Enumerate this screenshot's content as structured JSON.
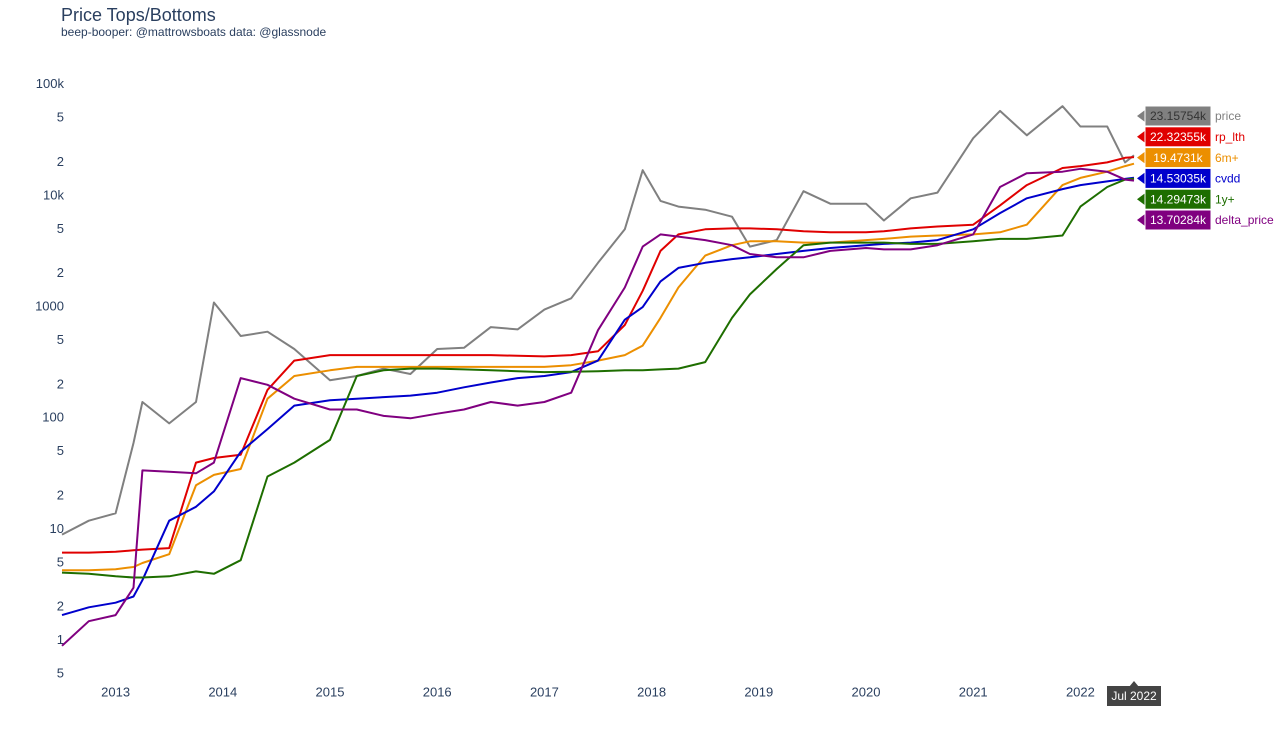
{
  "chart_data": {
    "type": "line",
    "title": "Price Tops/Bottoms",
    "subtitle": "beep-booper: @mattrowsboats data: @glassnode",
    "x_hover_label": "Jul 2022",
    "log_y": true,
    "grid": false,
    "x": [
      "2012-07",
      "2012-10",
      "2013-01",
      "2013-03",
      "2013-04",
      "2013-07",
      "2013-10",
      "2013-12",
      "2014-03",
      "2014-06",
      "2014-09",
      "2015-01",
      "2015-04",
      "2015-07",
      "2015-10",
      "2016-01",
      "2016-04",
      "2016-07",
      "2016-10",
      "2017-01",
      "2017-04",
      "2017-07",
      "2017-10",
      "2017-12",
      "2018-02",
      "2018-04",
      "2018-07",
      "2018-10",
      "2018-12",
      "2019-03",
      "2019-06",
      "2019-09",
      "2020-01",
      "2020-03",
      "2020-06",
      "2020-09",
      "2021-01",
      "2021-04",
      "2021-07",
      "2021-11",
      "2022-01",
      "2022-04",
      "2022-06",
      "2022-07"
    ],
    "xlim": [
      "2012-07",
      "2022-07"
    ],
    "xticks": [
      {
        "value": "2013-01",
        "label": "2013"
      },
      {
        "value": "2014-01",
        "label": "2014"
      },
      {
        "value": "2015-01",
        "label": "2015"
      },
      {
        "value": "2016-01",
        "label": "2016"
      },
      {
        "value": "2017-01",
        "label": "2017"
      },
      {
        "value": "2018-01",
        "label": "2018"
      },
      {
        "value": "2019-01",
        "label": "2019"
      },
      {
        "value": "2020-01",
        "label": "2020"
      },
      {
        "value": "2021-01",
        "label": "2021"
      },
      {
        "value": "2022-01",
        "label": "2022"
      }
    ],
    "ylim": [
      0.4,
      170000
    ],
    "yticks": [
      {
        "value": 100000,
        "label": "100k"
      },
      {
        "value": 50000,
        "label": "5"
      },
      {
        "value": 20000,
        "label": "2"
      },
      {
        "value": 10000,
        "label": "10k"
      },
      {
        "value": 5000,
        "label": "5"
      },
      {
        "value": 2000,
        "label": "2"
      },
      1000,
      {
        "value": 500,
        "label": "5"
      },
      {
        "value": 200,
        "label": "2"
      },
      100,
      {
        "value": 50,
        "label": "5"
      },
      {
        "value": 20,
        "label": "2"
      },
      10,
      {
        "value": 5,
        "label": "5"
      },
      {
        "value": 2,
        "label": "2"
      },
      1,
      {
        "value": 0.5,
        "label": "5"
      }
    ],
    "series": [
      {
        "name": "price",
        "color": "#808080",
        "label_text_color": "#333333",
        "values": [
          9,
          12,
          14,
          60,
          140,
          90,
          140,
          1100,
          550,
          600,
          420,
          220,
          240,
          280,
          250,
          420,
          430,
          660,
          630,
          950,
          1200,
          2500,
          5000,
          17000,
          9000,
          8000,
          7500,
          6500,
          3500,
          4000,
          11000,
          8500,
          8500,
          6000,
          9500,
          10700,
          33000,
          58000,
          35000,
          64000,
          42000,
          42000,
          20000,
          23157.54
        ],
        "value_labels": [
          null,
          null,
          null,
          null,
          null,
          null,
          null,
          null,
          null,
          null,
          null,
          null,
          null,
          null,
          null,
          null,
          null,
          null,
          null,
          null,
          null,
          null,
          null,
          null,
          null,
          null,
          null,
          null,
          null,
          null,
          null,
          null,
          null,
          null,
          null,
          null,
          null,
          null,
          null,
          null,
          null,
          null,
          null,
          "23.15754k"
        ]
      },
      {
        "name": "rp_lth",
        "color": "#e00000",
        "label_text_color": "#ffffff",
        "values": [
          6.2,
          6.2,
          6.3,
          6.5,
          6.6,
          6.8,
          40,
          44,
          47,
          180,
          330,
          370,
          370,
          370,
          370,
          370,
          370,
          370,
          365,
          360,
          370,
          400,
          690,
          1400,
          3200,
          4500,
          5000,
          5100,
          5100,
          5000,
          4800,
          4700,
          4700,
          4800,
          5100,
          5300,
          5500,
          8200,
          12500,
          17800,
          18500,
          20000,
          22000,
          22323.55
        ],
        "value_labels": [
          null,
          null,
          null,
          null,
          null,
          null,
          null,
          null,
          null,
          null,
          null,
          null,
          null,
          null,
          null,
          null,
          null,
          null,
          null,
          null,
          null,
          null,
          null,
          null,
          null,
          null,
          null,
          null,
          null,
          null,
          null,
          null,
          null,
          null,
          null,
          null,
          null,
          null,
          null,
          null,
          null,
          null,
          null,
          "22.32355k"
        ]
      },
      {
        "name": "6m+",
        "color": "#ec8f00",
        "label_text_color": "#ffffff",
        "values": [
          4.3,
          4.3,
          4.4,
          4.6,
          5,
          6,
          25,
          31,
          35,
          150,
          240,
          270,
          290,
          290,
          290,
          290,
          290,
          290,
          290,
          290,
          300,
          330,
          370,
          450,
          800,
          1500,
          2900,
          3600,
          3900,
          3900,
          3800,
          3800,
          4000,
          4100,
          4300,
          4400,
          4500,
          4700,
          5500,
          12500,
          14500,
          16500,
          18500,
          19473.1
        ],
        "value_labels": [
          null,
          null,
          null,
          null,
          null,
          null,
          null,
          null,
          null,
          null,
          null,
          null,
          null,
          null,
          null,
          null,
          null,
          null,
          null,
          null,
          null,
          null,
          null,
          null,
          null,
          null,
          null,
          null,
          null,
          null,
          null,
          null,
          null,
          null,
          null,
          null,
          null,
          null,
          null,
          null,
          null,
          null,
          null,
          "19.4731k"
        ]
      },
      {
        "name": "cvdd",
        "color": "#0000cc",
        "label_text_color": "#ffffff",
        "values": [
          1.7,
          2,
          2.2,
          2.5,
          3.5,
          12,
          16,
          22,
          50,
          80,
          130,
          145,
          150,
          155,
          160,
          170,
          190,
          210,
          230,
          240,
          260,
          330,
          770,
          1000,
          1700,
          2250,
          2500,
          2700,
          2800,
          3000,
          3200,
          3400,
          3600,
          3700,
          3800,
          4000,
          5000,
          7000,
          9500,
          11500,
          12500,
          13500,
          14200,
          14530.35
        ],
        "value_labels": [
          null,
          null,
          null,
          null,
          null,
          null,
          null,
          null,
          null,
          null,
          null,
          null,
          null,
          null,
          null,
          null,
          null,
          null,
          null,
          null,
          null,
          null,
          null,
          null,
          null,
          null,
          null,
          null,
          null,
          null,
          null,
          null,
          null,
          null,
          null,
          null,
          null,
          null,
          null,
          null,
          null,
          null,
          null,
          "14.53035k"
        ]
      },
      {
        "name": "1y+",
        "color": "#1e6e00",
        "label_text_color": "#ffffff",
        "values": [
          4.1,
          4,
          3.8,
          3.7,
          3.7,
          3.8,
          4.2,
          4,
          5.3,
          30,
          40,
          64,
          240,
          270,
          280,
          280,
          275,
          270,
          265,
          260,
          262,
          265,
          270,
          270,
          275,
          280,
          320,
          800,
          1300,
          2200,
          3600,
          3800,
          3800,
          3800,
          3700,
          3700,
          3900,
          4100,
          4100,
          4400,
          8000,
          12000,
          14000,
          14294.73
        ],
        "value_labels": [
          null,
          null,
          null,
          null,
          null,
          null,
          null,
          null,
          null,
          null,
          null,
          null,
          null,
          null,
          null,
          null,
          null,
          null,
          null,
          null,
          null,
          null,
          null,
          null,
          null,
          null,
          null,
          null,
          null,
          null,
          null,
          null,
          null,
          null,
          null,
          null,
          null,
          null,
          null,
          null,
          null,
          null,
          null,
          "14.29473k"
        ]
      },
      {
        "name": "delta_price",
        "color": "#800080",
        "label_text_color": "#ffffff",
        "values": [
          0.9,
          1.5,
          1.7,
          3,
          34,
          33,
          32,
          40,
          230,
          200,
          150,
          120,
          120,
          105,
          100,
          110,
          120,
          140,
          130,
          140,
          170,
          620,
          1500,
          3500,
          4500,
          4300,
          4000,
          3600,
          3000,
          2800,
          2800,
          3200,
          3400,
          3300,
          3300,
          3600,
          4500,
          12000,
          16000,
          16500,
          17500,
          16500,
          14000,
          13702.84
        ],
        "value_labels": [
          null,
          null,
          null,
          null,
          null,
          null,
          null,
          null,
          null,
          null,
          null,
          null,
          null,
          null,
          null,
          null,
          null,
          null,
          null,
          null,
          null,
          null,
          null,
          null,
          null,
          null,
          null,
          null,
          null,
          null,
          null,
          null,
          null,
          null,
          null,
          null,
          null,
          null,
          null,
          null,
          null,
          null,
          null,
          "13.70284k"
        ]
      }
    ]
  }
}
